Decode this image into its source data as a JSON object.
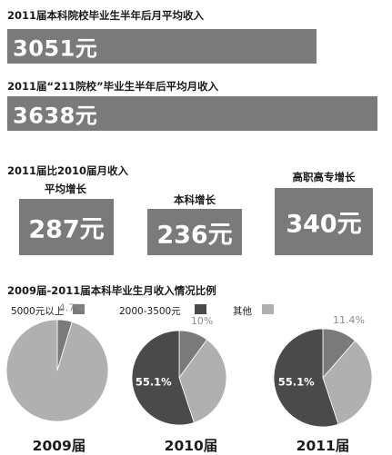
{
  "section1": {
    "heading": "2011届本科院校毕业生半年后月平均收入",
    "value": "3051元"
  },
  "section2": {
    "heading": "2011届“211院校”毕业生半年后平均月收入",
    "value": "3638元"
  },
  "section3": {
    "heading_line1": "2011届比2010届月收入",
    "bars": [
      {
        "label": "平均增长",
        "value": "287元"
      },
      {
        "label": "本科增长",
        "value": "236元"
      },
      {
        "label": "高职高专增长",
        "value": "340元"
      }
    ]
  },
  "section4": {
    "heading": "2009届-2011届本科毕业生月收入情况比例",
    "legend": [
      {
        "label": "5000元以上",
        "color": "#7a7a7a"
      },
      {
        "label": "2000-3500元",
        "color": "#4a4a4a"
      },
      {
        "label": "其他",
        "color": "#b0b0b0"
      }
    ]
  },
  "chart_data": [
    {
      "type": "bar",
      "categories": [
        "平均增长",
        "本科增长",
        "高职高专增长"
      ],
      "values": [
        287,
        236,
        340
      ],
      "title": "2011届比2010届月收入",
      "xlabel": "",
      "ylabel": ""
    },
    {
      "type": "pie",
      "title": "2009届",
      "slices": [
        {
          "name": "5000元以上",
          "value": 4.7,
          "label": "4.7%"
        },
        {
          "name": "其他",
          "value": 95.3,
          "label": ""
        }
      ]
    },
    {
      "type": "pie",
      "title": "2010届",
      "slices": [
        {
          "name": "5000元以上",
          "value": 10,
          "label": "10%"
        },
        {
          "name": "其他",
          "value": 34.9,
          "label": ""
        },
        {
          "name": "2000-3500元",
          "value": 55.1,
          "label": "55.1%"
        }
      ]
    },
    {
      "type": "pie",
      "title": "2011届",
      "slices": [
        {
          "name": "5000元以上",
          "value": 11.4,
          "label": "11.4%"
        },
        {
          "name": "其他",
          "value": 33.5,
          "label": ""
        },
        {
          "name": "2000-3500元",
          "value": 55.1,
          "label": "55.1%"
        }
      ]
    }
  ]
}
